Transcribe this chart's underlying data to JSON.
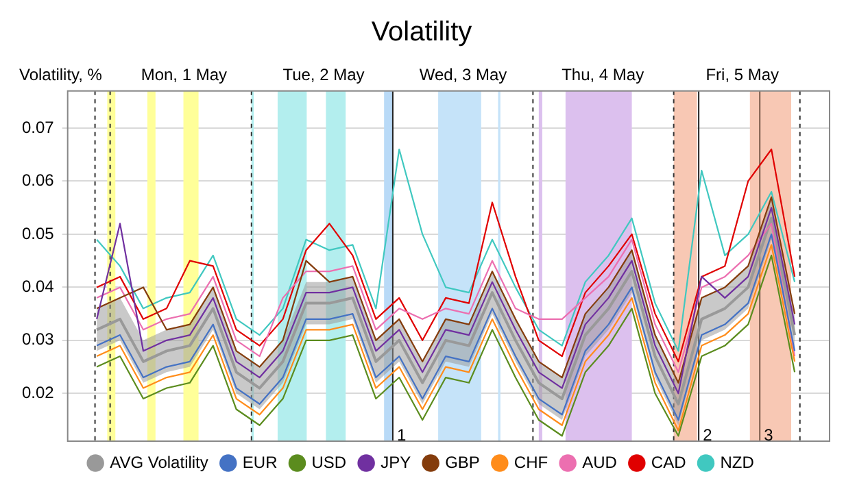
{
  "chart_data": {
    "type": "line",
    "title": "Volatility",
    "ylabel": "Volatility, %",
    "x": [
      "--04-30T21:00",
      "--05-01T01:00",
      "--05-01T05:00",
      "--05-01T09:00",
      "--05-01T13:00",
      "--05-01T17:00",
      "--05-01T21:00",
      "--05-02T01:00",
      "--05-02T05:00",
      "--05-02T09:00",
      "--05-02T13:00",
      "--05-02T17:00",
      "--05-02T21:00",
      "--05-03T01:00",
      "--05-03T05:00",
      "--05-03T09:00",
      "--05-03T13:00",
      "--05-03T17:00",
      "--05-03T21:00",
      "--05-04T01:00",
      "--05-04T05:00",
      "--05-04T09:00",
      "--05-04T13:00",
      "--05-04T17:00",
      "--05-04T21:00",
      "--05-05T01:00",
      "--05-05T05:00",
      "--05-05T09:00",
      "--05-05T13:00",
      "--05-05T17:00",
      "--05-05T21:00"
    ],
    "xlim": [
      "--04-30T16:00",
      "--05-06T03:00"
    ],
    "xticks": [
      {
        "value": "--05-01T12:00",
        "label": "Mon, 1 May"
      },
      {
        "value": "--05-02T12:00",
        "label": "Tue, 2 May"
      },
      {
        "value": "--05-03T12:00",
        "label": "Wed, 3 May"
      },
      {
        "value": "--05-04T12:00",
        "label": "Thu, 4 May"
      },
      {
        "value": "--05-05T12:00",
        "label": "Fri, 5 May"
      }
    ],
    "ylim": [
      0.011,
      0.077
    ],
    "yticks": [
      0.02,
      0.03,
      0.04,
      0.05,
      0.06,
      0.07
    ],
    "grid": "y",
    "legend": "bottom",
    "marker": "none",
    "series": [
      {
        "name": "AVG Volatility",
        "color": "#999999",
        "values": [
          0.032,
          0.034,
          0.026,
          0.028,
          0.029,
          0.036,
          0.024,
          0.021,
          0.026,
          0.037,
          0.037,
          0.038,
          0.026,
          0.03,
          0.022,
          0.03,
          0.029,
          0.039,
          0.03,
          0.022,
          0.019,
          0.031,
          0.036,
          0.043,
          0.027,
          0.018,
          0.034,
          0.036,
          0.04,
          0.053,
          0.031
        ],
        "lower": [
          0.028,
          0.03,
          0.022,
          0.024,
          0.025,
          0.032,
          0.02,
          0.017,
          0.022,
          0.033,
          0.033,
          0.034,
          0.022,
          0.026,
          0.018,
          0.026,
          0.025,
          0.035,
          0.026,
          0.018,
          0.015,
          0.027,
          0.032,
          0.039,
          0.023,
          0.014,
          0.03,
          0.032,
          0.036,
          0.049,
          0.027
        ],
        "upper": [
          0.036,
          0.038,
          0.03,
          0.032,
          0.033,
          0.04,
          0.028,
          0.025,
          0.03,
          0.041,
          0.041,
          0.042,
          0.03,
          0.034,
          0.026,
          0.034,
          0.033,
          0.043,
          0.034,
          0.026,
          0.023,
          0.035,
          0.04,
          0.047,
          0.031,
          0.022,
          0.038,
          0.04,
          0.044,
          0.057,
          0.035
        ]
      },
      {
        "name": "EUR",
        "color": "#4472c4",
        "values": [
          0.029,
          0.031,
          0.023,
          0.025,
          0.026,
          0.033,
          0.021,
          0.018,
          0.023,
          0.034,
          0.034,
          0.035,
          0.023,
          0.027,
          0.019,
          0.027,
          0.026,
          0.036,
          0.027,
          0.019,
          0.016,
          0.028,
          0.033,
          0.04,
          0.024,
          0.015,
          0.031,
          0.033,
          0.037,
          0.05,
          0.028
        ]
      },
      {
        "name": "USD",
        "color": "#5b8c1e",
        "values": [
          0.025,
          0.027,
          0.019,
          0.021,
          0.022,
          0.029,
          0.017,
          0.014,
          0.019,
          0.03,
          0.03,
          0.031,
          0.019,
          0.023,
          0.015,
          0.023,
          0.022,
          0.032,
          0.023,
          0.015,
          0.012,
          0.024,
          0.029,
          0.036,
          0.02,
          0.012,
          0.027,
          0.029,
          0.033,
          0.046,
          0.024
        ]
      },
      {
        "name": "JPY",
        "color": "#7030a0",
        "values": [
          0.034,
          0.052,
          0.028,
          0.03,
          0.031,
          0.038,
          0.026,
          0.023,
          0.028,
          0.039,
          0.039,
          0.04,
          0.028,
          0.032,
          0.024,
          0.032,
          0.031,
          0.041,
          0.032,
          0.024,
          0.021,
          0.033,
          0.038,
          0.045,
          0.029,
          0.02,
          0.042,
          0.038,
          0.042,
          0.055,
          0.033
        ]
      },
      {
        "name": "GBP",
        "color": "#843c0c",
        "values": [
          0.036,
          0.038,
          0.04,
          0.032,
          0.033,
          0.04,
          0.028,
          0.025,
          0.03,
          0.045,
          0.041,
          0.042,
          0.03,
          0.034,
          0.026,
          0.034,
          0.033,
          0.043,
          0.034,
          0.026,
          0.023,
          0.035,
          0.04,
          0.047,
          0.031,
          0.022,
          0.038,
          0.04,
          0.044,
          0.057,
          0.035
        ]
      },
      {
        "name": "CHF",
        "color": "#ff8c1a",
        "values": [
          0.027,
          0.029,
          0.021,
          0.023,
          0.024,
          0.031,
          0.019,
          0.016,
          0.021,
          0.032,
          0.032,
          0.033,
          0.021,
          0.025,
          0.017,
          0.025,
          0.024,
          0.034,
          0.025,
          0.017,
          0.014,
          0.026,
          0.031,
          0.038,
          0.022,
          0.013,
          0.029,
          0.031,
          0.035,
          0.048,
          0.026
        ]
      },
      {
        "name": "AUD",
        "color": "#ec6fb0",
        "values": [
          0.038,
          0.04,
          0.032,
          0.034,
          0.035,
          0.042,
          0.03,
          0.027,
          0.038,
          0.043,
          0.043,
          0.044,
          0.032,
          0.036,
          0.034,
          0.036,
          0.035,
          0.045,
          0.036,
          0.034,
          0.034,
          0.038,
          0.042,
          0.049,
          0.033,
          0.024,
          0.04,
          0.042,
          0.046,
          0.052,
          0.027
        ]
      },
      {
        "name": "CAD",
        "color": "#e00000",
        "values": [
          0.04,
          0.042,
          0.034,
          0.036,
          0.045,
          0.044,
          0.032,
          0.029,
          0.034,
          0.047,
          0.052,
          0.046,
          0.034,
          0.038,
          0.03,
          0.038,
          0.037,
          0.056,
          0.042,
          0.03,
          0.027,
          0.039,
          0.044,
          0.05,
          0.035,
          0.026,
          0.042,
          0.044,
          0.06,
          0.066,
          0.042
        ]
      },
      {
        "name": "NZD",
        "color": "#40c8c0",
        "values": [
          0.049,
          0.044,
          0.036,
          0.038,
          0.039,
          0.046,
          0.034,
          0.031,
          0.036,
          0.049,
          0.047,
          0.048,
          0.036,
          0.066,
          0.05,
          0.04,
          0.039,
          0.049,
          0.04,
          0.032,
          0.029,
          0.041,
          0.046,
          0.053,
          0.037,
          0.028,
          0.062,
          0.046,
          0.05,
          0.058,
          0.041
        ]
      }
    ],
    "ref_lines": [
      {
        "axis": "x",
        "value": "--04-30T20:42",
        "color": "#333333",
        "line_style": "dashed"
      },
      {
        "axis": "x",
        "value": "--04-30T23:18",
        "color": "#333333",
        "line_style": "dashed"
      },
      {
        "axis": "x",
        "value": "--05-01T23:36",
        "color": "#333333",
        "line_style": "dashed"
      },
      {
        "axis": "x",
        "value": "--05-04T00:00",
        "color": "#333333",
        "line_style": "dashed"
      },
      {
        "axis": "x",
        "value": "--05-05T00:12",
        "color": "#333333",
        "line_style": "dashed"
      },
      {
        "axis": "x",
        "value": "--05-05T21:54",
        "color": "#333333",
        "line_style": "dashed"
      },
      {
        "axis": "x",
        "value": "--05-02T23:54",
        "color": "#222222",
        "line_style": "solid"
      },
      {
        "axis": "x",
        "value": "--05-05T04:30",
        "color": "#222222",
        "line_style": "solid"
      },
      {
        "axis": "x",
        "value": "--05-05T15:00",
        "color": "#7a5a4a",
        "line_style": "solid"
      }
    ],
    "annotations": [
      {
        "text": "1",
        "x": "--05-02T23:54",
        "y": 0.012
      },
      {
        "text": "2",
        "x": "--05-05T04:30",
        "y": 0.012
      },
      {
        "text": "3",
        "x": "--05-05T15:00",
        "y": 0.012
      }
    ],
    "bands": [
      {
        "axis": "x",
        "from": "--04-30T22:48",
        "to": "--05-01T00:12",
        "color": "#ffff99"
      },
      {
        "axis": "x",
        "from": "--05-01T05:42",
        "to": "--05-01T07:06",
        "color": "#ffff99"
      },
      {
        "axis": "x",
        "from": "--05-01T11:54",
        "to": "--05-01T14:30",
        "color": "#ffff99"
      },
      {
        "axis": "x",
        "from": "--05-01T23:36",
        "to": "--05-02T00:00",
        "color": "#b3eeee"
      },
      {
        "axis": "x",
        "from": "--05-02T04:06",
        "to": "--05-02T09:06",
        "color": "#b3eeee"
      },
      {
        "axis": "x",
        "from": "--05-02T12:24",
        "to": "--05-02T15:48",
        "color": "#b3eeee"
      },
      {
        "axis": "x",
        "from": "--05-02T22:24",
        "to": "--05-02T23:54",
        "color": "#b9daf7"
      },
      {
        "axis": "x",
        "from": "--05-03T07:42",
        "to": "--05-03T15:06",
        "color": "#c5e3f9"
      },
      {
        "axis": "x",
        "from": "--05-03T18:00",
        "to": "--05-03T18:24",
        "color": "#c5e3f9"
      },
      {
        "axis": "x",
        "from": "--05-04T01:00",
        "to": "--05-04T01:36",
        "color": "#dcc0ee"
      },
      {
        "axis": "x",
        "from": "--05-04T05:36",
        "to": "--05-04T17:00",
        "color": "#dcc0ee"
      },
      {
        "axis": "x",
        "from": "--05-05T00:12",
        "to": "--05-05T04:12",
        "color": "#f8c8b4"
      },
      {
        "axis": "x",
        "from": "--05-05T13:18",
        "to": "--05-05T20:24",
        "color": "#f8c8b4"
      }
    ]
  }
}
